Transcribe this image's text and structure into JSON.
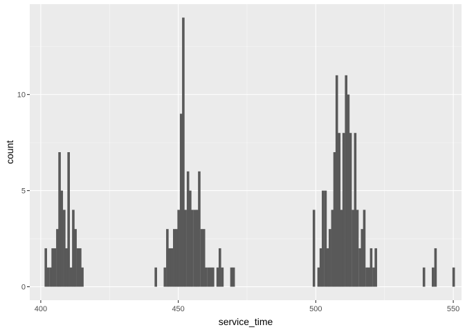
{
  "chart_data": {
    "type": "bar",
    "xlabel": "service_time",
    "ylabel": "count",
    "xlim": [
      396,
      553
    ],
    "ylim": [
      -0.7,
      14.7
    ],
    "x_ticks": [
      400,
      450,
      500,
      550
    ],
    "x_tick_labels": [
      "400",
      "450",
      "500",
      "550"
    ],
    "y_ticks": [
      0,
      5,
      10
    ],
    "y_tick_labels": [
      "0",
      "5",
      "10"
    ],
    "grid": true,
    "bin_width": 0.8333,
    "bins": [
      {
        "x": 401.8,
        "count": 2
      },
      {
        "x": 402.6,
        "count": 1
      },
      {
        "x": 403.5,
        "count": 1
      },
      {
        "x": 404.3,
        "count": 2
      },
      {
        "x": 405.1,
        "count": 2
      },
      {
        "x": 406.0,
        "count": 3
      },
      {
        "x": 406.8,
        "count": 7
      },
      {
        "x": 407.6,
        "count": 5
      },
      {
        "x": 408.5,
        "count": 4
      },
      {
        "x": 409.3,
        "count": 2
      },
      {
        "x": 410.1,
        "count": 7
      },
      {
        "x": 411.0,
        "count": 1
      },
      {
        "x": 411.8,
        "count": 4
      },
      {
        "x": 412.6,
        "count": 3
      },
      {
        "x": 413.5,
        "count": 2
      },
      {
        "x": 414.3,
        "count": 2
      },
      {
        "x": 415.1,
        "count": 1
      },
      {
        "x": 441.8,
        "count": 1
      },
      {
        "x": 445.1,
        "count": 1
      },
      {
        "x": 446.0,
        "count": 3
      },
      {
        "x": 446.8,
        "count": 2
      },
      {
        "x": 447.6,
        "count": 2
      },
      {
        "x": 448.5,
        "count": 3
      },
      {
        "x": 449.3,
        "count": 3
      },
      {
        "x": 450.1,
        "count": 4
      },
      {
        "x": 451.0,
        "count": 9
      },
      {
        "x": 451.8,
        "count": 14
      },
      {
        "x": 452.6,
        "count": 4
      },
      {
        "x": 453.5,
        "count": 6
      },
      {
        "x": 454.3,
        "count": 5
      },
      {
        "x": 455.1,
        "count": 4
      },
      {
        "x": 456.0,
        "count": 4
      },
      {
        "x": 456.8,
        "count": 4
      },
      {
        "x": 457.6,
        "count": 6
      },
      {
        "x": 458.5,
        "count": 3
      },
      {
        "x": 459.3,
        "count": 3
      },
      {
        "x": 460.1,
        "count": 1
      },
      {
        "x": 461.0,
        "count": 1
      },
      {
        "x": 461.8,
        "count": 1
      },
      {
        "x": 462.6,
        "count": 1
      },
      {
        "x": 464.3,
        "count": 1
      },
      {
        "x": 465.1,
        "count": 2
      },
      {
        "x": 466.0,
        "count": 1
      },
      {
        "x": 469.3,
        "count": 1
      },
      {
        "x": 470.1,
        "count": 1
      },
      {
        "x": 499.3,
        "count": 4
      },
      {
        "x": 501.0,
        "count": 1
      },
      {
        "x": 501.8,
        "count": 2
      },
      {
        "x": 502.6,
        "count": 5
      },
      {
        "x": 503.5,
        "count": 5
      },
      {
        "x": 504.3,
        "count": 2
      },
      {
        "x": 505.1,
        "count": 3
      },
      {
        "x": 506.0,
        "count": 4
      },
      {
        "x": 506.8,
        "count": 7
      },
      {
        "x": 507.6,
        "count": 11
      },
      {
        "x": 508.5,
        "count": 8
      },
      {
        "x": 509.3,
        "count": 4
      },
      {
        "x": 510.1,
        "count": 8
      },
      {
        "x": 511.0,
        "count": 11
      },
      {
        "x": 511.8,
        "count": 10
      },
      {
        "x": 512.6,
        "count": 8
      },
      {
        "x": 513.5,
        "count": 4
      },
      {
        "x": 514.3,
        "count": 8
      },
      {
        "x": 515.1,
        "count": 4
      },
      {
        "x": 516.0,
        "count": 2
      },
      {
        "x": 516.8,
        "count": 3
      },
      {
        "x": 517.6,
        "count": 4
      },
      {
        "x": 518.5,
        "count": 1
      },
      {
        "x": 519.3,
        "count": 1
      },
      {
        "x": 520.1,
        "count": 2
      },
      {
        "x": 521.0,
        "count": 1
      },
      {
        "x": 521.8,
        "count": 2
      },
      {
        "x": 539.3,
        "count": 1
      },
      {
        "x": 542.6,
        "count": 1
      },
      {
        "x": 543.5,
        "count": 2
      },
      {
        "x": 550.1,
        "count": 1
      }
    ]
  },
  "colors": {
    "panel_background": "#ebebeb",
    "grid_major": "#ffffff",
    "bar_fill": "#595959",
    "tick_mark": "#333333"
  }
}
